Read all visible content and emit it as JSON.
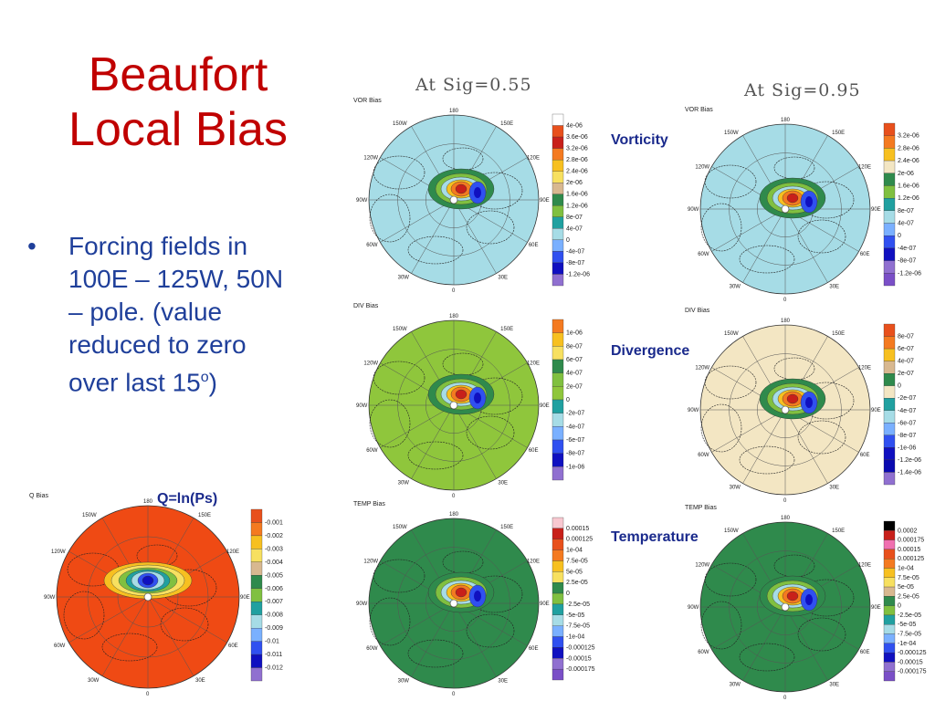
{
  "slide": {
    "title_line1": "Beaufort",
    "title_line2": "Local Bias",
    "bullet_line1": "Forcing fields in",
    "bullet_line2": "100E – 125W, 50N",
    "bullet_line3": "– pole. (value",
    "bullet_line4": "reduced to zero",
    "bullet_line5_main": "over last 15",
    "bullet_line5_sup": "o",
    "bullet_line5_end": ")",
    "sig1": "At Sig=0.55",
    "sig2": "At Sig=0.95",
    "label_vorticity": "Vorticity",
    "label_divergence": "Divergence",
    "label_temperature": "Temperature",
    "label_q": "Q=ln(Ps)"
  },
  "polar_ticks": {
    "top": "180",
    "tr": "150E",
    "tl": "150W",
    "r1": "120E",
    "l1": "120W",
    "r2": "90E",
    "l2": "90W",
    "r3": "60E",
    "l3": "60W",
    "br": "30E",
    "bl": "30W",
    "bottom": "0"
  },
  "panels": {
    "q": {
      "title": "Q Bias",
      "bg": "#ef4a14",
      "levels": [
        "-0.001",
        "-0.002",
        "-0.003",
        "-0.004",
        "-0.005",
        "-0.006",
        "-0.007",
        "-0.008",
        "-0.009",
        "-0.01",
        "-0.011",
        "-0.012"
      ]
    },
    "vor055": {
      "title": "VOR Bias",
      "bg": "#a6dce6",
      "levels": [
        "4e-06",
        "3.6e-06",
        "3.2e-06",
        "2.8e-06",
        "2.4e-06",
        "2e-06",
        "1.6e-06",
        "1.2e-06",
        "8e-07",
        "4e-07",
        "0",
        "-4e-07",
        "-8e-07",
        "-1.2e-06"
      ]
    },
    "vor095": {
      "title": "VOR Bias",
      "bg": "#a6dce6",
      "levels": [
        "3.2e-06",
        "2.8e-06",
        "2.4e-06",
        "2e-06",
        "1.6e-06",
        "1.2e-06",
        "8e-07",
        "4e-07",
        "0",
        "-4e-07",
        "-8e-07",
        "-1.2e-06"
      ]
    },
    "div055": {
      "title": "DIV Bias",
      "bg": "#8fc63c",
      "levels": [
        "1e-06",
        "8e-07",
        "6e-07",
        "4e-07",
        "2e-07",
        "0",
        "-2e-07",
        "-4e-07",
        "-6e-07",
        "-8e-07",
        "-1e-06"
      ]
    },
    "div095": {
      "title": "DIV Bias",
      "bg": "#f3e6c3",
      "levels": [
        "8e-07",
        "6e-07",
        "4e-07",
        "2e-07",
        "0",
        "-2e-07",
        "-4e-07",
        "-6e-07",
        "-8e-07",
        "-1e-06",
        "-1.2e-06",
        "-1.4e-06"
      ]
    },
    "temp055": {
      "title": "TEMP Bias",
      "bg": "#2f8a4c",
      "levels": [
        "0.00015",
        "0.000125",
        "1e-04",
        "7.5e-05",
        "5e-05",
        "2.5e-05",
        "0",
        "-2.5e-05",
        "-5e-05",
        "-7.5e-05",
        "-1e-04",
        "-0.000125",
        "-0.00015",
        "-0.000175"
      ]
    },
    "temp095": {
      "title": "TEMP Bias",
      "bg": "#2f8a4c",
      "levels": [
        "0.0002",
        "0.000175",
        "0.00015",
        "0.000125",
        "1e-04",
        "7.5e-05",
        "5e-05",
        "2.5e-05",
        "0",
        "-2.5e-05",
        "-5e-05",
        "-7.5e-05",
        "-1e-04",
        "-0.000125",
        "-0.00015",
        "-0.000175"
      ]
    }
  },
  "colorbar_palettes": {
    "vor055": [
      "#ffffff",
      "#e8501c",
      "#c8201a",
      "#f47a20",
      "#f7c020",
      "#f7e060",
      "#d8b890",
      "#2f8a4c",
      "#80c040",
      "#20a0a0",
      "#a6dce6",
      "#7ab0ff",
      "#3050f0",
      "#1010c0",
      "#9070d0"
    ],
    "vor095": [
      "#e8501c",
      "#f47a20",
      "#f7c020",
      "#f3e6c3",
      "#2f8a4c",
      "#80c040",
      "#20a0a0",
      "#a6dce6",
      "#7ab0ff",
      "#3050f0",
      "#1010c0",
      "#9070d0",
      "#7a4fc7"
    ],
    "div055": [
      "#f47a20",
      "#f7c020",
      "#f7e060",
      "#2f8a4c",
      "#80c040",
      "#8fc63c",
      "#20a0a0",
      "#a6dce6",
      "#7ab0ff",
      "#3050f0",
      "#1010c0",
      "#9070d0"
    ],
    "div095": [
      "#e8501c",
      "#f47a20",
      "#f7c020",
      "#d8b890",
      "#2f8a4c",
      "#f3e6c3",
      "#20a0a0",
      "#a6dce6",
      "#7ab0ff",
      "#3050f0",
      "#1010c0",
      "#0a0ab0",
      "#9070d0"
    ],
    "temp055": [
      "#f8c8d0",
      "#c8201a",
      "#e8501c",
      "#f47a20",
      "#f7c020",
      "#f7e060",
      "#2f8a4c",
      "#80c040",
      "#20a0a0",
      "#a6dce6",
      "#7ab0ff",
      "#3050f0",
      "#1010c0",
      "#9070d0",
      "#7a4fc7"
    ],
    "temp095": [
      "#000000",
      "#c8201a",
      "#f070b0",
      "#e8501c",
      "#f47a20",
      "#f7c020",
      "#f7e060",
      "#d8b890",
      "#2f8a4c",
      "#80c040",
      "#20a0a0",
      "#a6dce6",
      "#7ab0ff",
      "#3050f0",
      "#1010c0",
      "#9070d0",
      "#7a4fc7"
    ],
    "q": [
      "#e8501c",
      "#f47a20",
      "#f7c020",
      "#f7e060",
      "#d8b890",
      "#2f8a4c",
      "#80c040",
      "#20a0a0",
      "#a6dce6",
      "#7ab0ff",
      "#3050f0",
      "#1010c0",
      "#9070d0"
    ]
  }
}
